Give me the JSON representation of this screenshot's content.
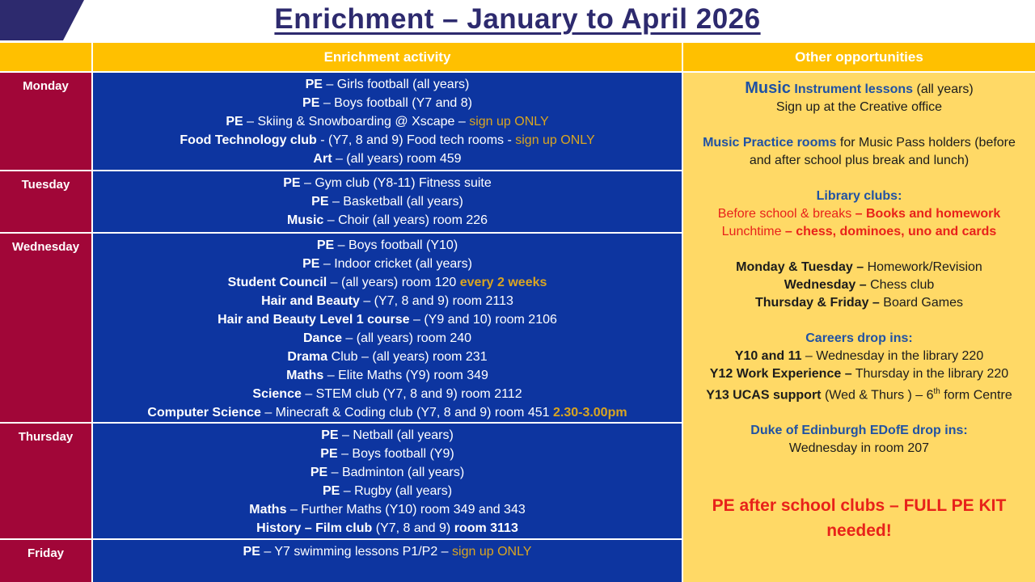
{
  "title": "Enrichment – January to April 2026",
  "colors": {
    "navy": "#2D2A6E",
    "header_gold": "#FFC000",
    "panel_gold": "#FFD966",
    "maroon": "#A10638",
    "blue": "#0D35A0",
    "white": "#FFFFFF",
    "gold_text": "#D9A521",
    "blue_heading": "#2052A4",
    "red_text": "#E8221A",
    "text_black": "#1C1C1C"
  },
  "header": {
    "activity_col": "Enrichment activity",
    "other_col": "Other opportunities"
  },
  "schedule": [
    {
      "day": "Monday",
      "lines": [
        [
          {
            "t": "PE",
            "b": 1
          },
          {
            "t": " – Girls football (all years)"
          }
        ],
        [
          {
            "t": "PE",
            "b": 1
          },
          {
            "t": " – Boys football (Y7 and 8)"
          }
        ],
        [
          {
            "t": "PE",
            "b": 1
          },
          {
            "t": " – Skiing & Snowboarding @ Xscape – "
          },
          {
            "t": "sign up ONLY",
            "c": "gold_text"
          }
        ],
        [
          {
            "t": "Food Technology club",
            "b": 1
          },
          {
            "t": " - (Y7, 8 and 9) Food tech rooms - "
          },
          {
            "t": "sign up ONLY",
            "c": "gold_text"
          }
        ],
        [
          {
            "t": "Art",
            "b": 1
          },
          {
            "t": " – (all years) room 459"
          }
        ]
      ]
    },
    {
      "day": "Tuesday",
      "lines": [
        [
          {
            "t": "PE",
            "b": 1
          },
          {
            "t": " – Gym club (Y8-11) Fitness suite"
          }
        ],
        [
          {
            "t": "PE",
            "b": 1
          },
          {
            "t": " – Basketball (all years)"
          }
        ],
        [
          {
            "t": "Music",
            "b": 1
          },
          {
            "t": " – Choir (all years) room 226"
          }
        ]
      ]
    },
    {
      "day": "Wednesday",
      "lines": [
        [
          {
            "t": "PE",
            "b": 1
          },
          {
            "t": " – Boys football (Y10)"
          }
        ],
        [
          {
            "t": "PE",
            "b": 1
          },
          {
            "t": " – Indoor cricket (all years)"
          }
        ],
        [
          {
            "t": "Student Council",
            "b": 1
          },
          {
            "t": " – (all years) room 120 "
          },
          {
            "t": "every 2 weeks",
            "b": 1,
            "c": "gold_text"
          }
        ],
        [
          {
            "t": "Hair and Beauty",
            "b": 1
          },
          {
            "t": " – (Y7, 8 and 9) room 2113"
          }
        ],
        [
          {
            "t": "Hair and Beauty Level 1 course",
            "b": 1
          },
          {
            "t": " – (Y9 and 10) room 2106"
          }
        ],
        [
          {
            "t": "Dance",
            "b": 1
          },
          {
            "t": " – (all years) room 240"
          }
        ],
        [
          {
            "t": "Drama",
            "b": 1
          },
          {
            "t": " Club – (all years) room 231"
          }
        ],
        [
          {
            "t": "Maths",
            "b": 1
          },
          {
            "t": " – Elite Maths (Y9) room 349"
          }
        ],
        [
          {
            "t": "Science",
            "b": 1
          },
          {
            "t": " – STEM club (Y7, 8 and 9) room 2112"
          }
        ],
        [
          {
            "t": "Computer Science",
            "b": 1
          },
          {
            "t": " – Minecraft & Coding club (Y7, 8 and 9) room 451 "
          },
          {
            "t": "2.30-3.00pm",
            "b": 1,
            "c": "gold_text"
          }
        ]
      ]
    },
    {
      "day": "Thursday",
      "lines": [
        [
          {
            "t": "PE",
            "b": 1
          },
          {
            "t": " – Netball (all years)"
          }
        ],
        [
          {
            "t": "PE",
            "b": 1
          },
          {
            "t": " – Boys football (Y9)"
          }
        ],
        [
          {
            "t": "PE",
            "b": 1
          },
          {
            "t": " – Badminton (all years)"
          }
        ],
        [
          {
            "t": "PE",
            "b": 1
          },
          {
            "t": " – Rugby (all years)"
          }
        ],
        [
          {
            "t": "Maths",
            "b": 1
          },
          {
            "t": " – Further Maths (Y10) room 349 and 343"
          }
        ],
        [
          {
            "t": "History – Film club",
            "b": 1
          },
          {
            "t": " (Y7, 8 and 9) "
          },
          {
            "t": "room 3113",
            "b": 1
          }
        ]
      ]
    },
    {
      "day": "Friday",
      "lines": [
        [
          {
            "t": "PE",
            "b": 1
          },
          {
            "t": " – Y7 swimming lessons P1/P2 – "
          },
          {
            "t": "sign up ONLY",
            "c": "gold_text"
          }
        ]
      ]
    }
  ],
  "other_opportunities": [
    {
      "segs": [
        {
          "t": "Music",
          "b": 1,
          "c": "blue_heading",
          "big": 1
        },
        {
          "t": " Instrument lessons",
          "b": 1,
          "c": "blue_heading"
        },
        {
          "t": " (all years)"
        }
      ]
    },
    {
      "segs": [
        {
          "t": "Sign up at the Creative office"
        }
      ]
    },
    {
      "segs": []
    },
    {
      "segs": [
        {
          "t": "Music Practice rooms",
          "b": 1,
          "c": "blue_heading"
        },
        {
          "t": " for Music Pass holders (before and after school plus break and lunch)"
        }
      ]
    },
    {
      "segs": []
    },
    {
      "segs": [
        {
          "t": "Library clubs:",
          "b": 1,
          "c": "blue_heading"
        }
      ]
    },
    {
      "segs": [
        {
          "t": "Before school & breaks ",
          "c": "red_text"
        },
        {
          "t": "– Books and homework",
          "b": 1,
          "c": "red_text"
        }
      ]
    },
    {
      "segs": [
        {
          "t": "Lunchtime ",
          "c": "red_text"
        },
        {
          "t": "– chess, dominoes, uno and cards",
          "b": 1,
          "c": "red_text"
        }
      ]
    },
    {
      "segs": []
    },
    {
      "segs": [
        {
          "t": "Monday & Tuesday – ",
          "b": 1
        },
        {
          "t": "Homework/Revision"
        }
      ]
    },
    {
      "segs": [
        {
          "t": "Wednesday – ",
          "b": 1
        },
        {
          "t": "Chess club"
        }
      ]
    },
    {
      "segs": [
        {
          "t": "Thursday & Friday – ",
          "b": 1
        },
        {
          "t": "Board Games"
        }
      ]
    },
    {
      "segs": []
    },
    {
      "segs": [
        {
          "t": "Careers drop ins:",
          "b": 1,
          "c": "blue_heading"
        }
      ]
    },
    {
      "segs": [
        {
          "t": "Y10 and 11",
          "b": 1
        },
        {
          "t": " – Wednesday in the library 220"
        }
      ]
    },
    {
      "segs": [
        {
          "t": "Y12 Work Experience –",
          "b": 1
        },
        {
          "t": " Thursday in the library 220"
        }
      ]
    },
    {
      "segs": [
        {
          "t": "Y13 UCAS support",
          "b": 1
        },
        {
          "t": " (Wed & Thurs ) – 6"
        },
        {
          "t": "th",
          "sup": 1
        },
        {
          "t": " form Centre"
        }
      ]
    },
    {
      "segs": []
    },
    {
      "segs": [
        {
          "t": "Duke of Edinburgh EDofE drop ins:",
          "b": 1,
          "c": "blue_heading"
        }
      ]
    },
    {
      "segs": [
        {
          "t": "Wednesday in room 207"
        }
      ]
    },
    {
      "segs": []
    },
    {
      "segs": []
    },
    {
      "cls": "big-red",
      "segs": [
        {
          "t": "PE after school clubs – FULL PE KIT needed!",
          "b": 1,
          "c": "red_text"
        }
      ]
    }
  ]
}
